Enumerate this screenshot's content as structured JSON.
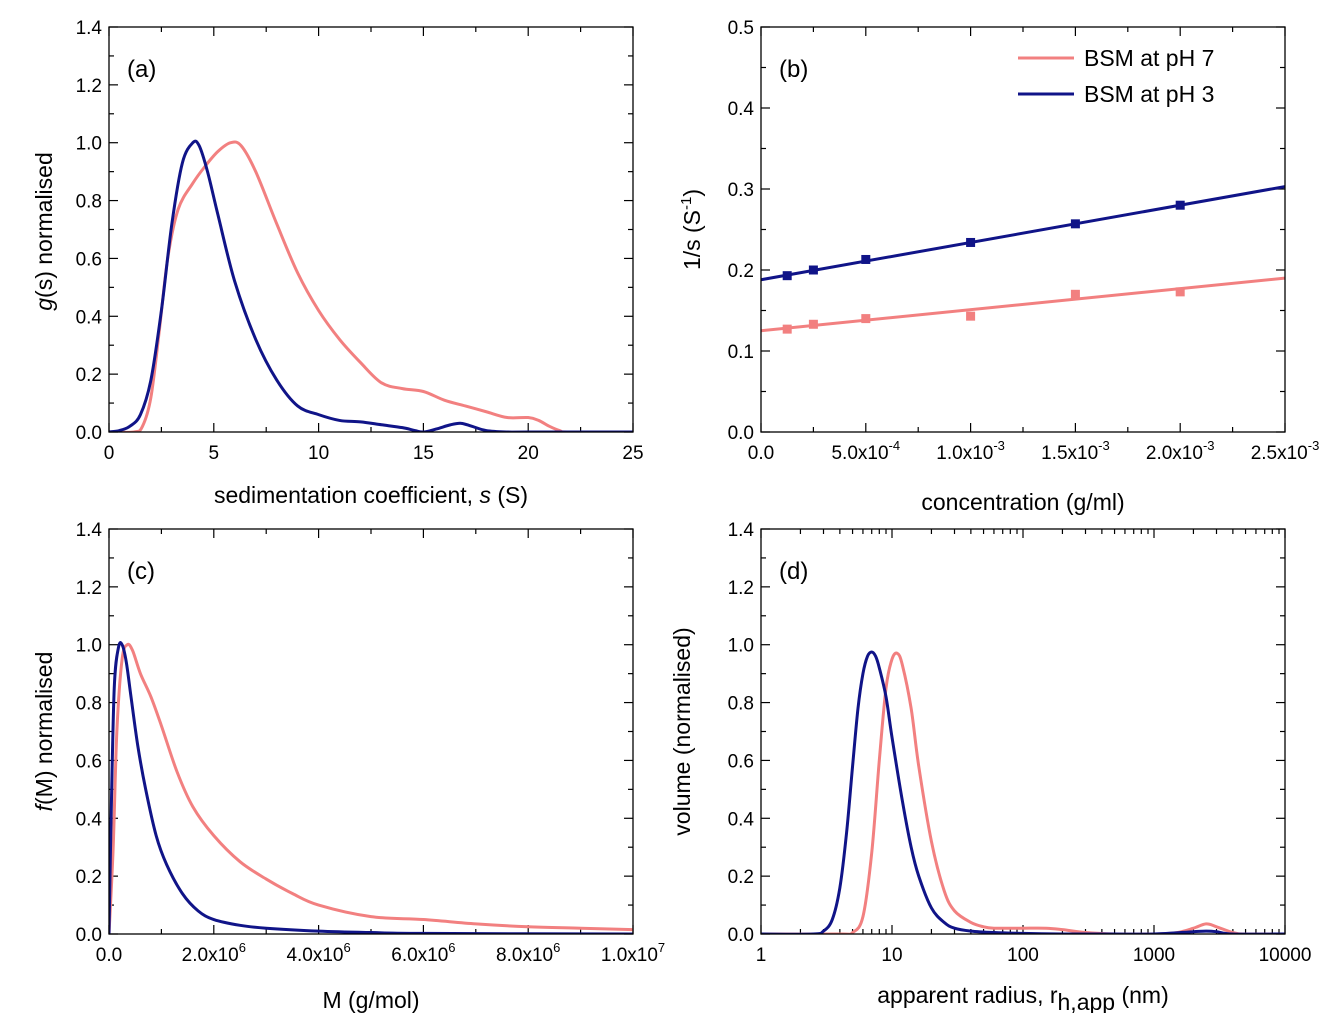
{
  "colors": {
    "pH7": "#f28080",
    "pH3": "#101488"
  },
  "legend": {
    "pH7": "BSM at pH 7",
    "pH3": "BSM at pH 3"
  },
  "chart_data": [
    {
      "id": "a",
      "type": "line",
      "panel_label": "(a)",
      "xlabel": {
        "pre": "sedimentation coefficient, ",
        "italic": "s",
        "post": " (S)"
      },
      "ylabel": {
        "italic": "g",
        "post": "(s) normalised"
      },
      "xlim": [
        0,
        25
      ],
      "ylim": [
        0,
        1.4
      ],
      "xticks": [
        0,
        5,
        10,
        15,
        20,
        25
      ],
      "xtick_labels": [
        "0",
        "5",
        "10",
        "15",
        "20",
        "25"
      ],
      "yticks": [
        0,
        0.2,
        0.4,
        0.6,
        0.8,
        1.0,
        1.2,
        1.4
      ],
      "ytick_labels": [
        "0.0",
        "0.2",
        "0.4",
        "0.6",
        "0.8",
        "1.0",
        "1.2",
        "1.4"
      ],
      "series": [
        {
          "key": "pH7",
          "x": [
            0,
            1.2,
            1.6,
            2.0,
            2.4,
            2.8,
            3.3,
            4.0,
            4.6,
            5.2,
            5.8,
            6.3,
            7.0,
            8.0,
            9.0,
            10.0,
            11.0,
            12.0,
            13.0,
            14.0,
            15.0,
            16.0,
            17.0,
            18.0,
            19.0,
            20.0,
            20.5,
            21.0,
            21.5,
            22.0,
            25.0
          ],
          "y": [
            0,
            0,
            0.02,
            0.12,
            0.35,
            0.6,
            0.77,
            0.86,
            0.92,
            0.97,
            1.0,
            0.99,
            0.9,
            0.72,
            0.55,
            0.42,
            0.32,
            0.24,
            0.17,
            0.15,
            0.14,
            0.11,
            0.09,
            0.07,
            0.05,
            0.05,
            0.04,
            0.02,
            0.005,
            0,
            0
          ]
        },
        {
          "key": "pH3",
          "x": [
            0,
            0.5,
            1.0,
            1.5,
            2.0,
            2.5,
            3.0,
            3.5,
            4.0,
            4.3,
            4.7,
            5.2,
            6.0,
            7.0,
            8.0,
            9.0,
            10.0,
            11.0,
            12.0,
            13.0,
            14.0,
            14.6,
            15.0,
            15.6,
            16.3,
            16.8,
            17.3,
            18.0,
            19.0,
            20.0,
            25.0
          ],
          "y": [
            0,
            0.005,
            0.02,
            0.06,
            0.18,
            0.42,
            0.72,
            0.93,
            1.0,
            0.99,
            0.9,
            0.75,
            0.52,
            0.32,
            0.18,
            0.09,
            0.06,
            0.04,
            0.035,
            0.025,
            0.015,
            0.005,
            0,
            0.01,
            0.025,
            0.03,
            0.02,
            0.005,
            0,
            0,
            0
          ]
        }
      ]
    },
    {
      "id": "b",
      "type": "scatter",
      "panel_label": "(b)",
      "xlabel": {
        "pre": "concentration (g/ml)",
        "italic": "",
        "post": ""
      },
      "ylabel": {
        "pre": "1/s (S",
        "sup": "-1",
        "post": ")"
      },
      "xlim": [
        0,
        0.0025
      ],
      "ylim": [
        0,
        0.5
      ],
      "xticks": [
        0,
        0.0005,
        0.001,
        0.0015,
        0.002,
        0.0025
      ],
      "xtick_labels": [
        {
          "base": "0.0",
          "exp": ""
        },
        {
          "base": "5.0x10",
          "exp": "-4"
        },
        {
          "base": "1.0x10",
          "exp": "-3"
        },
        {
          "base": "1.5x10",
          "exp": "-3"
        },
        {
          "base": "2.0x10",
          "exp": "-3"
        },
        {
          "base": "2.5x10",
          "exp": "-3"
        }
      ],
      "yticks": [
        0,
        0.1,
        0.2,
        0.3,
        0.4,
        0.5
      ],
      "ytick_labels": [
        "0.0",
        "0.1",
        "0.2",
        "0.3",
        "0.4",
        "0.5"
      ],
      "series": [
        {
          "key": "pH7",
          "x": [
            0.000125,
            0.00025,
            0.0005,
            0.001,
            0.0015,
            0.002
          ],
          "y": [
            0.127,
            0.133,
            0.14,
            0.143,
            0.17,
            0.173
          ],
          "fit": {
            "intercept": 0.125,
            "slope": 26
          }
        },
        {
          "key": "pH3",
          "x": [
            0.000125,
            0.00025,
            0.0005,
            0.001,
            0.0015,
            0.002
          ],
          "y": [
            0.193,
            0.2,
            0.213,
            0.234,
            0.257,
            0.28
          ],
          "fit": {
            "intercept": 0.188,
            "slope": 46
          }
        }
      ]
    },
    {
      "id": "c",
      "type": "line",
      "panel_label": "(c)",
      "xlabel": {
        "pre": "M (g/mol)",
        "italic": "",
        "post": ""
      },
      "ylabel": {
        "italic": "f",
        "post": "(M) normalised"
      },
      "xlim": [
        0,
        10000000
      ],
      "ylim": [
        0,
        1.4
      ],
      "xticks": [
        0,
        2000000,
        4000000,
        6000000,
        8000000,
        10000000
      ],
      "xtick_labels": [
        {
          "base": "0.0",
          "exp": ""
        },
        {
          "base": "2.0x10",
          "exp": "6"
        },
        {
          "base": "4.0x10",
          "exp": "6"
        },
        {
          "base": "6.0x10",
          "exp": "6"
        },
        {
          "base": "8.0x10",
          "exp": "6"
        },
        {
          "base": "1.0x10",
          "exp": "7"
        }
      ],
      "yticks": [
        0,
        0.2,
        0.4,
        0.6,
        0.8,
        1.0,
        1.2,
        1.4
      ],
      "ytick_labels": [
        "0.0",
        "0.2",
        "0.4",
        "0.6",
        "0.8",
        "1.0",
        "1.2",
        "1.4"
      ],
      "series": [
        {
          "key": "pH7",
          "x": [
            0,
            80000,
            150000,
            250000,
            350000,
            450000,
            600000,
            800000,
            1000000,
            1300000,
            1600000,
            2000000,
            2500000,
            3000000,
            3500000,
            4000000,
            5000000,
            6000000,
            7000000,
            8000000,
            9000000,
            10000000
          ],
          "y": [
            0,
            0.3,
            0.7,
            0.95,
            1.0,
            0.98,
            0.9,
            0.82,
            0.72,
            0.56,
            0.44,
            0.34,
            0.25,
            0.19,
            0.14,
            0.1,
            0.06,
            0.05,
            0.035,
            0.025,
            0.02,
            0.015
          ]
        },
        {
          "key": "pH3",
          "x": [
            0,
            40000,
            100000,
            180000,
            250000,
            330000,
            420000,
            550000,
            700000,
            900000,
            1100000,
            1400000,
            1700000,
            2000000,
            2500000,
            3000000,
            4000000,
            5000000,
            6000000,
            10000000
          ],
          "y": [
            0,
            0.4,
            0.85,
            0.99,
            1.0,
            0.94,
            0.82,
            0.65,
            0.5,
            0.34,
            0.24,
            0.14,
            0.08,
            0.05,
            0.03,
            0.02,
            0.01,
            0.005,
            0.002,
            0
          ]
        }
      ]
    },
    {
      "id": "d",
      "type": "line",
      "panel_label": "(d)",
      "xlabel": {
        "pre": "apparent radius, r",
        "sub": "h,app",
        "post": " (nm)"
      },
      "ylabel": {
        "pre": "volume (normalised)",
        "italic": "",
        "post": ""
      },
      "xscale": "log",
      "xlim": [
        1,
        10000
      ],
      "ylim": [
        0,
        1.4
      ],
      "xticks": [
        1,
        10,
        100,
        1000,
        10000
      ],
      "xtick_labels": [
        "1",
        "10",
        "100",
        "1000",
        "10000"
      ],
      "yticks": [
        0,
        0.2,
        0.4,
        0.6,
        0.8,
        1.0,
        1.2,
        1.4
      ],
      "ytick_labels": [
        "0.0",
        "0.2",
        "0.4",
        "0.6",
        "0.8",
        "1.0",
        "1.2",
        "1.4"
      ],
      "series": [
        {
          "key": "pH7",
          "x": [
            1,
            4,
            5,
            6,
            7,
            8,
            9,
            10,
            11,
            12,
            14,
            16,
            20,
            25,
            30,
            40,
            50,
            60,
            80,
            100,
            150,
            200,
            300,
            500,
            1000,
            1500,
            2000,
            2500,
            3000,
            4000,
            5000,
            10000
          ],
          "y": [
            0,
            0,
            0.005,
            0.06,
            0.28,
            0.6,
            0.85,
            0.95,
            0.97,
            0.93,
            0.78,
            0.58,
            0.32,
            0.15,
            0.08,
            0.04,
            0.025,
            0.02,
            0.02,
            0.02,
            0.02,
            0.015,
            0.005,
            0,
            0,
            0.005,
            0.02,
            0.035,
            0.025,
            0.005,
            0,
            0
          ]
        },
        {
          "key": "pH3",
          "x": [
            1,
            2.5,
            3,
            3.5,
            4,
            4.5,
            5,
            5.5,
            6,
            6.5,
            7,
            7.5,
            8,
            9,
            10,
            12,
            14,
            16,
            20,
            25,
            30,
            40,
            60,
            100,
            200,
            300,
            500,
            1000,
            2000,
            2500,
            3000,
            4000,
            10000
          ],
          "y": [
            0,
            0,
            0.01,
            0.05,
            0.16,
            0.35,
            0.58,
            0.78,
            0.9,
            0.96,
            0.975,
            0.96,
            0.92,
            0.82,
            0.68,
            0.46,
            0.3,
            0.2,
            0.09,
            0.04,
            0.02,
            0.01,
            0.005,
            0.002,
            0,
            0,
            0,
            0,
            0.008,
            0.01,
            0.008,
            0,
            0
          ]
        }
      ]
    }
  ]
}
